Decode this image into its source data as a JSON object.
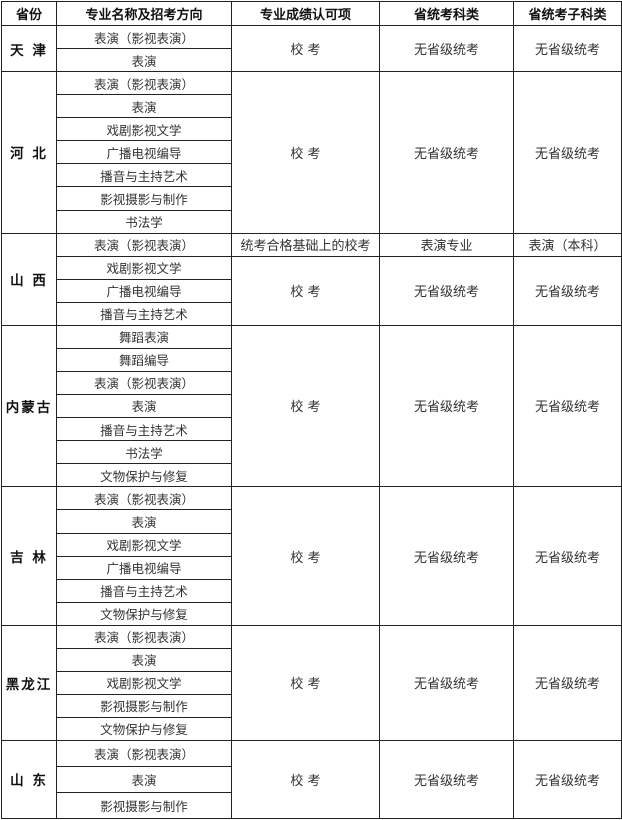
{
  "headers": [
    "省份",
    "专业名称及招考方向",
    "专业成绩认可项",
    "省统考科类",
    "省统考子科类"
  ],
  "provinces": [
    {
      "name": "天 津",
      "rowh": 23,
      "blocks": [
        {
          "majors": [
            "表演（影视表演）",
            "表演"
          ],
          "recognition": "校 考",
          "exam": "无省级统考",
          "subexam": "无省级统考"
        }
      ]
    },
    {
      "name": "河 北",
      "rowh": 23.1,
      "blocks": [
        {
          "majors": [
            "表演（影视表演）",
            "表演",
            "戏剧影视文学",
            "广播电视编导",
            "播音与主持艺术",
            "影视摄影与制作",
            "书法学"
          ],
          "recognition": "校 考",
          "exam": "无省级统考",
          "subexam": "无省级统考"
        }
      ]
    },
    {
      "name": "山 西",
      "rowh": 23,
      "blocks": [
        {
          "majors": [
            "表演（影视表演）"
          ],
          "recognition": "统考合格基础上的校考",
          "exam": "表演专业",
          "subexam": "表演（本科）"
        },
        {
          "majors": [
            "戏剧影视文学",
            "广播电视编导",
            "播音与主持艺术"
          ],
          "recognition": "校 考",
          "exam": "无省级统考",
          "subexam": "无省级统考"
        }
      ]
    },
    {
      "name": "内蒙古",
      "rowh": 23.1,
      "blocks": [
        {
          "majors": [
            "舞蹈表演",
            "舞蹈编导",
            "表演（影视表演）",
            "表演",
            "播音与主持艺术",
            "书法学",
            "文物保护与修复"
          ],
          "recognition": "校 考",
          "exam": "无省级统考",
          "subexam": "无省级统考"
        }
      ]
    },
    {
      "name": "吉 林",
      "rowh": 23.1,
      "blocks": [
        {
          "majors": [
            "表演（影视表演）",
            "表演",
            "戏剧影视文学",
            "广播电视编导",
            "播音与主持艺术",
            "文物保护与修复"
          ],
          "recognition": "校 考",
          "exam": "无省级统考",
          "subexam": "无省级统考"
        }
      ]
    },
    {
      "name": "黑龙江",
      "rowh": 23,
      "blocks": [
        {
          "majors": [
            "表演（影视表演）",
            "表演",
            "戏剧影视文学",
            "影视摄影与制作",
            "文物保护与修复"
          ],
          "recognition": "校 考",
          "exam": "无省级统考",
          "subexam": "无省级统考"
        }
      ]
    },
    {
      "name": "山 东",
      "rowh": 26,
      "blocks": [
        {
          "majors": [
            "表演（影视表演）",
            "表演",
            "影视摄影与制作"
          ],
          "recognition": "校 考",
          "exam": "无省级统考",
          "subexam": "无省级统考"
        }
      ]
    }
  ]
}
